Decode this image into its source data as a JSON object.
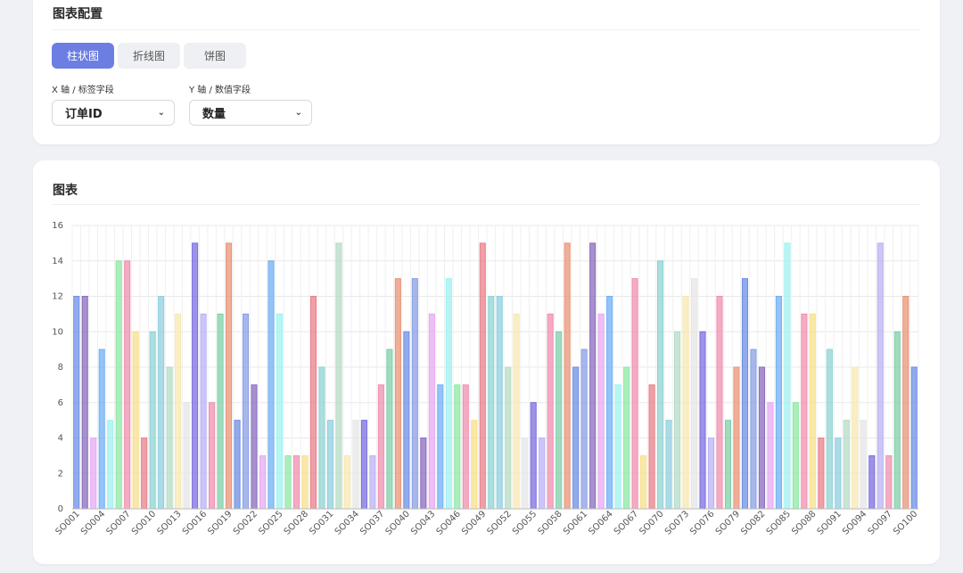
{
  "config": {
    "title": "图表配置",
    "tabs": [
      {
        "label": "柱状图",
        "active": true
      },
      {
        "label": "折线图",
        "active": false
      },
      {
        "label": "饼图",
        "active": false
      }
    ],
    "x_field": {
      "label": "X 轴 / 标签字段",
      "value": "订单ID"
    },
    "y_field": {
      "label": "Y 轴 / 数值字段",
      "value": "数量"
    }
  },
  "chart_section": {
    "title": "图表"
  },
  "colors": {
    "accent": "#6c7ee1"
  },
  "chart_data": {
    "type": "bar",
    "ylim": [
      0,
      16
    ],
    "yticks": [
      0,
      2,
      4,
      6,
      8,
      10,
      12,
      14,
      16
    ],
    "grid": true,
    "categories": [
      "SO001",
      "SO002",
      "SO003",
      "SO004",
      "SO005",
      "SO006",
      "SO007",
      "SO008",
      "SO009",
      "SO010",
      "SO011",
      "SO012",
      "SO013",
      "SO014",
      "SO015",
      "SO016",
      "SO017",
      "SO018",
      "SO019",
      "SO020",
      "SO021",
      "SO022",
      "SO023",
      "SO024",
      "SO025",
      "SO026",
      "SO027",
      "SO028",
      "SO029",
      "SO030",
      "SO031",
      "SO032",
      "SO033",
      "SO034",
      "SO035",
      "SO036",
      "SO037",
      "SO038",
      "SO039",
      "SO040",
      "SO041",
      "SO042",
      "SO043",
      "SO044",
      "SO045",
      "SO046",
      "SO047",
      "SO048",
      "SO049",
      "SO050",
      "SO051",
      "SO052",
      "SO053",
      "SO054",
      "SO055",
      "SO056",
      "SO057",
      "SO058",
      "SO059",
      "SO060",
      "SO061",
      "SO062",
      "SO063",
      "SO064",
      "SO065",
      "SO066",
      "SO067",
      "SO068",
      "SO069",
      "SO070",
      "SO071",
      "SO072",
      "SO073",
      "SO074",
      "SO075",
      "SO076",
      "SO077",
      "SO078",
      "SO079",
      "SO080",
      "SO081",
      "SO082",
      "SO083",
      "SO084",
      "SO085",
      "SO086",
      "SO087",
      "SO088",
      "SO089",
      "SO090",
      "SO091",
      "SO092",
      "SO093",
      "SO094",
      "SO095",
      "SO096",
      "SO097",
      "SO098",
      "SO099",
      "SO100"
    ],
    "x_tick_labels": [
      "SO001",
      "SO004",
      "SO007",
      "SO010",
      "SO013",
      "SO016",
      "SO019",
      "SO022",
      "SO025",
      "SO028",
      "SO031",
      "SO034",
      "SO037",
      "SO040",
      "SO043",
      "SO046",
      "SO049",
      "SO052",
      "SO055",
      "SO058",
      "SO061",
      "SO064",
      "SO067",
      "SO070",
      "SO073",
      "SO076",
      "SO079",
      "SO082",
      "SO085",
      "SO088",
      "SO091",
      "SO094",
      "SO097",
      "SO100"
    ],
    "values": [
      12,
      12,
      4,
      9,
      5,
      14,
      14,
      10,
      4,
      10,
      12,
      8,
      11,
      6,
      15,
      11,
      6,
      11,
      15,
      5,
      11,
      7,
      3,
      14,
      11,
      3,
      3,
      3,
      12,
      8,
      5,
      15,
      3,
      5,
      5,
      3,
      7,
      9,
      13,
      10,
      13,
      4,
      11,
      7,
      13,
      7,
      7,
      5,
      15,
      12,
      12,
      8,
      11,
      4,
      6,
      4,
      11,
      10,
      15,
      8,
      9,
      15,
      11,
      12,
      7,
      8,
      13,
      3,
      7,
      14,
      5,
      10,
      12,
      13,
      10,
      4,
      12,
      5,
      8,
      13,
      9,
      8,
      6,
      12,
      15,
      6,
      11,
      11,
      4,
      9,
      4,
      5,
      8,
      5,
      3,
      15,
      3,
      10,
      12,
      8
    ],
    "bar_colors": [
      "#6c8fe6",
      "#8a6bbd",
      "#e6a9f2",
      "#6fb0f5",
      "#9ff2f2",
      "#8ee8a6",
      "#f08fb0",
      "#f7e08a",
      "#e97f89",
      "#8fd3d3",
      "#8fcfe0",
      "#b5dcc5",
      "#f7e8b0",
      "#e6e6e6",
      "#7b6ee0",
      "#b9b2f5",
      "#f08fb0",
      "#7fd0a8",
      "#e99477",
      "#6c8fe6",
      "#8a9fe6",
      "#8a6bbd",
      "#e6a9f2",
      "#6fb0f5",
      "#9ff2f2",
      "#8ee8a6",
      "#f08fb0",
      "#f7e08a",
      "#e97f89",
      "#8fd3d3",
      "#8fcfe0",
      "#b5dcc5",
      "#f7e8b0",
      "#e6e6e6",
      "#7b6ee0",
      "#b9b2f5",
      "#f08fb0",
      "#7fd0a8",
      "#e99477",
      "#6c8fe6",
      "#8a9fe6",
      "#8a6bbd",
      "#e6a9f2",
      "#6fb0f5",
      "#9ff2f2",
      "#8ee8a6",
      "#f08fb0",
      "#f7e08a",
      "#e97f89",
      "#8fd3d3",
      "#8fcfe0",
      "#b5dcc5",
      "#f7e8b0",
      "#e6e6e6",
      "#7b6ee0",
      "#b9b2f5",
      "#f08fb0",
      "#7fd0a8",
      "#e99477",
      "#6c8fe6",
      "#8a9fe6",
      "#8a6bbd",
      "#e6a9f2",
      "#6fb0f5",
      "#9ff2f2",
      "#8ee8a6",
      "#f08fb0",
      "#f7e08a",
      "#e97f89",
      "#8fd3d3",
      "#8fcfe0",
      "#b5dcc5",
      "#f7e8b0",
      "#e6e6e6",
      "#7b6ee0",
      "#b9b2f5",
      "#f08fb0",
      "#7fd0a8",
      "#e99477",
      "#6c8fe6",
      "#8a9fe6",
      "#8a6bbd",
      "#e6a9f2",
      "#6fb0f5",
      "#9ff2f2",
      "#8ee8a6",
      "#f08fb0",
      "#f7e08a",
      "#e97f89",
      "#8fd3d3",
      "#8fcfe0",
      "#b5dcc5",
      "#f7e8b0",
      "#e6e6e6",
      "#7b6ee0",
      "#b9b2f5",
      "#f08fb0",
      "#7fd0a8",
      "#e99477",
      "#6c8fe6"
    ]
  }
}
